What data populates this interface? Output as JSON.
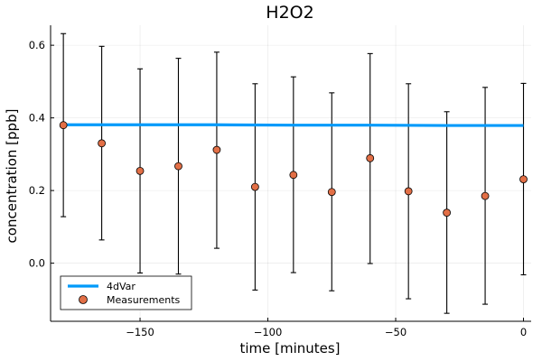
{
  "chart_data": {
    "type": "scatter",
    "title": "H2O2",
    "xlabel": "time [minutes]",
    "ylabel": "concentration [ppb]",
    "xlim": [
      -185,
      3
    ],
    "ylim": [
      -0.16,
      0.655
    ],
    "xticks": [
      -150,
      -100,
      -50,
      0
    ],
    "yticks": [
      0.0,
      0.2,
      0.4,
      0.6
    ],
    "xtick_labels": [
      "−150",
      "−100",
      "−50",
      "0"
    ],
    "ytick_labels": [
      "0.0",
      "0.2",
      "0.4",
      "0.6"
    ],
    "grid": true,
    "legend_position": "bottom-left",
    "series": [
      {
        "name": "4dVar",
        "kind": "line",
        "color": "#009AFA",
        "x": [
          -180,
          -150,
          -120,
          -90,
          -60,
          -30,
          0
        ],
        "y": [
          0.381,
          0.381,
          0.381,
          0.38,
          0.38,
          0.379,
          0.379
        ]
      },
      {
        "name": "Measurements",
        "kind": "scatter_errorbar",
        "color": "#E26F46",
        "x": [
          -180,
          -165,
          -150,
          -135,
          -120,
          -105,
          -90,
          -75,
          -60,
          -45,
          -30,
          -15,
          0
        ],
        "y": [
          0.38,
          0.33,
          0.254,
          0.267,
          0.312,
          0.21,
          0.243,
          0.196,
          0.289,
          0.198,
          0.139,
          0.185,
          0.231
        ],
        "yerr_low": [
          0.128,
          0.064,
          -0.027,
          -0.03,
          0.041,
          -0.074,
          -0.026,
          -0.076,
          -0.001,
          -0.098,
          -0.138,
          -0.113,
          -0.032
        ],
        "yerr_high": [
          0.632,
          0.597,
          0.535,
          0.564,
          0.581,
          0.494,
          0.513,
          0.469,
          0.577,
          0.494,
          0.417,
          0.484,
          0.495
        ]
      }
    ]
  }
}
